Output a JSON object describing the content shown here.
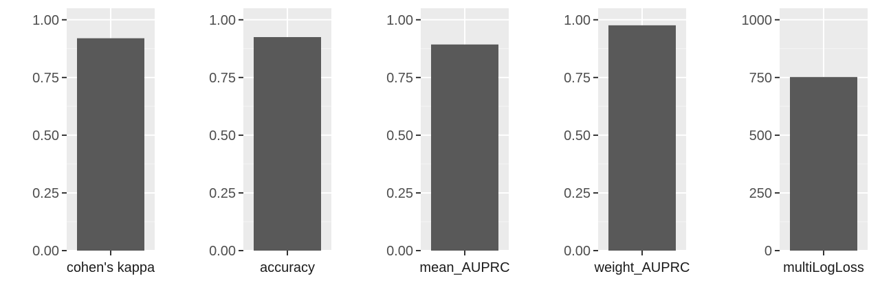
{
  "chart_data": [
    {
      "type": "bar",
      "categories": [
        "cohen's kappa"
      ],
      "values": [
        0.92
      ],
      "ylim": [
        0,
        1.05
      ],
      "yticks": [
        0,
        0.25,
        0.5,
        0.75,
        1.0
      ],
      "ytick_labels": [
        "0.00",
        "0.25",
        "0.50",
        "0.75",
        "1.00"
      ],
      "title": "",
      "xlabel": "",
      "ylabel": "",
      "grid": true
    },
    {
      "type": "bar",
      "categories": [
        "accuracy"
      ],
      "values": [
        0.925
      ],
      "ylim": [
        0,
        1.05
      ],
      "yticks": [
        0,
        0.25,
        0.5,
        0.75,
        1.0
      ],
      "ytick_labels": [
        "0.00",
        "0.25",
        "0.50",
        "0.75",
        "1.00"
      ],
      "title": "",
      "xlabel": "",
      "ylabel": "",
      "grid": true
    },
    {
      "type": "bar",
      "categories": [
        "mean_AUPRC"
      ],
      "values": [
        0.893
      ],
      "ylim": [
        0,
        1.05
      ],
      "yticks": [
        0,
        0.25,
        0.5,
        0.75,
        1.0
      ],
      "ytick_labels": [
        "0.00",
        "0.25",
        "0.50",
        "0.75",
        "1.00"
      ],
      "title": "",
      "xlabel": "",
      "ylabel": "",
      "grid": true
    },
    {
      "type": "bar",
      "categories": [
        "weight_AUPRC"
      ],
      "values": [
        0.976
      ],
      "ylim": [
        0,
        1.05
      ],
      "yticks": [
        0,
        0.25,
        0.5,
        0.75,
        1.0
      ],
      "ytick_labels": [
        "0.00",
        "0.25",
        "0.50",
        "0.75",
        "1.00"
      ],
      "title": "",
      "xlabel": "",
      "ylabel": "",
      "grid": true
    },
    {
      "type": "bar",
      "categories": [
        "multiLogLoss"
      ],
      "values": [
        752
      ],
      "ylim": [
        0,
        1050
      ],
      "yticks": [
        0,
        250,
        500,
        750,
        1000
      ],
      "ytick_labels": [
        "0",
        "250",
        "500",
        "750",
        "1000"
      ],
      "title": "",
      "xlabel": "",
      "ylabel": "",
      "grid": true
    }
  ],
  "colors": {
    "panel_background": "#ebebeb",
    "grid_major": "#ffffff",
    "grid_minor": "#f5f5f5",
    "bar_fill": "#595959",
    "tick": "#333333",
    "tick_text": "#4d4d4d",
    "axis_text": "#1a1a1a"
  }
}
